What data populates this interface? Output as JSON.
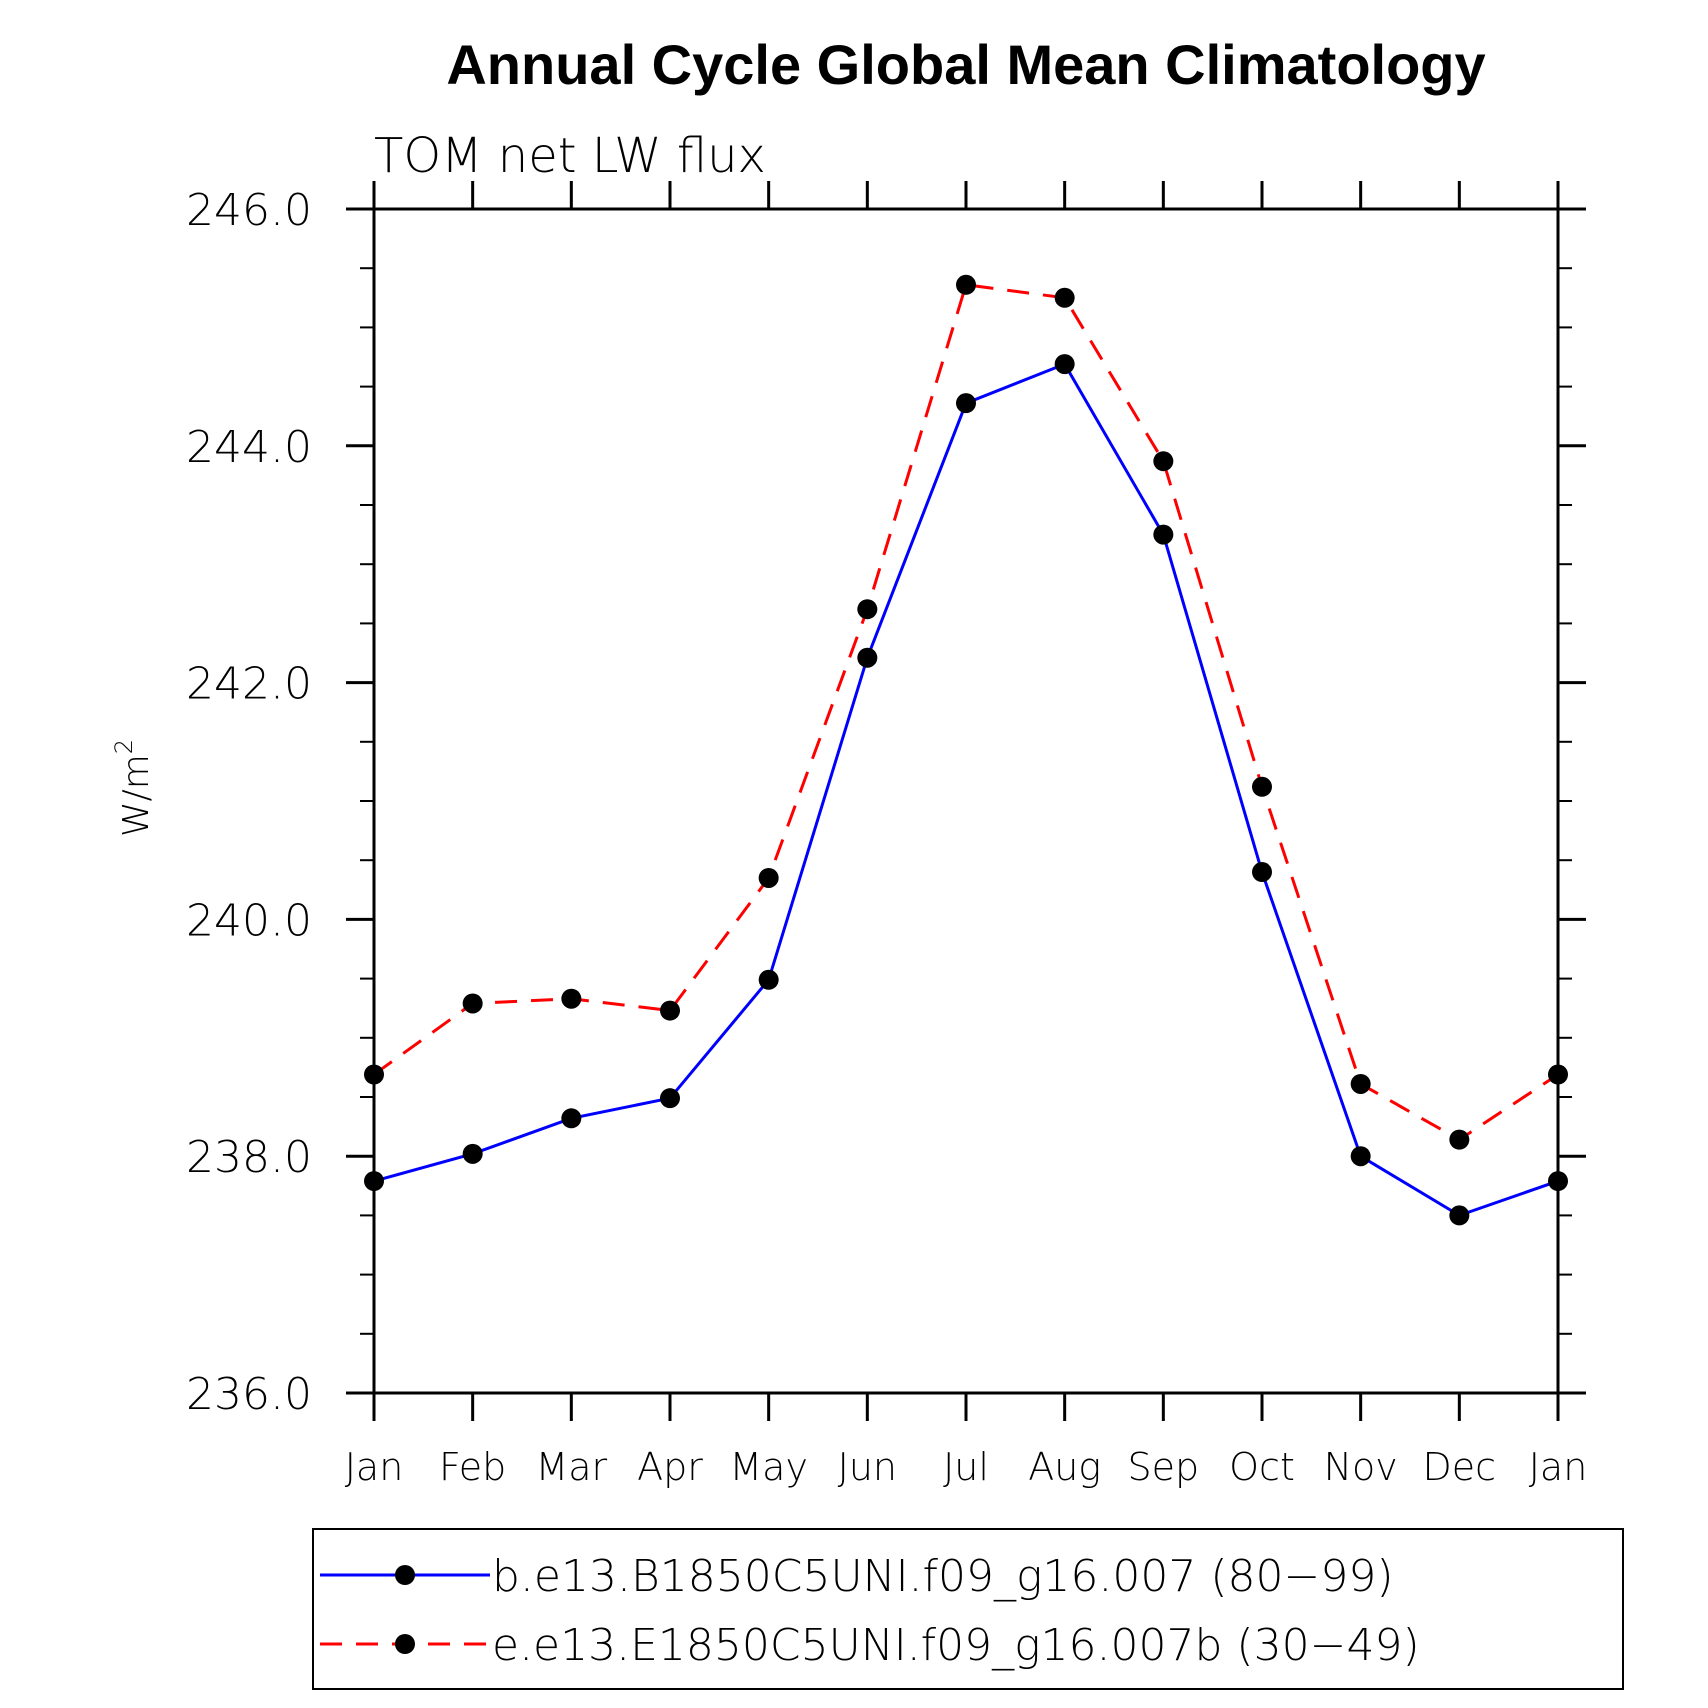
{
  "chart_data": {
    "type": "line",
    "title": "Annual Cycle Global Mean Climatology",
    "subtitle": "TOM net LW flux",
    "ylabel_base": "W/m",
    "ylabel_sup": "2",
    "xlabel": "",
    "categories": [
      "Jan",
      "Feb",
      "Mar",
      "Apr",
      "May",
      "Jun",
      "Jul",
      "Aug",
      "Sep",
      "Oct",
      "Nov",
      "Dec",
      "Jan"
    ],
    "ylim": [
      236.0,
      246.0
    ],
    "yticks": [
      236.0,
      238.0,
      240.0,
      242.0,
      244.0,
      246.0
    ],
    "ytick_labels": [
      "236.0",
      "238.0",
      "240.0",
      "242.0",
      "244.0",
      "246.0"
    ],
    "series": [
      {
        "name": "b.e13.B1850C5UNI.f09_g16.007 (80-99)",
        "color": "#0000ff",
        "dash": "solid",
        "values": [
          237.79,
          238.02,
          238.32,
          238.49,
          239.49,
          242.21,
          244.36,
          244.69,
          243.25,
          240.4,
          238.0,
          237.5,
          237.79
        ]
      },
      {
        "name": "e.e13.E1850C5UNI.f09_g16.007b (30-49)",
        "color": "#ff0000",
        "dash": "dashed",
        "values": [
          238.69,
          239.29,
          239.33,
          239.23,
          240.35,
          242.62,
          245.36,
          245.25,
          243.87,
          241.12,
          238.61,
          238.14,
          238.69
        ]
      }
    ],
    "legend": {
      "entries": [
        "b.e13.B1850C5UNI.f09_g16.007 (80−99)",
        "e.e13.E1850C5UNI.f09_g16.007b (30−49)"
      ],
      "placement": "bottom"
    }
  }
}
